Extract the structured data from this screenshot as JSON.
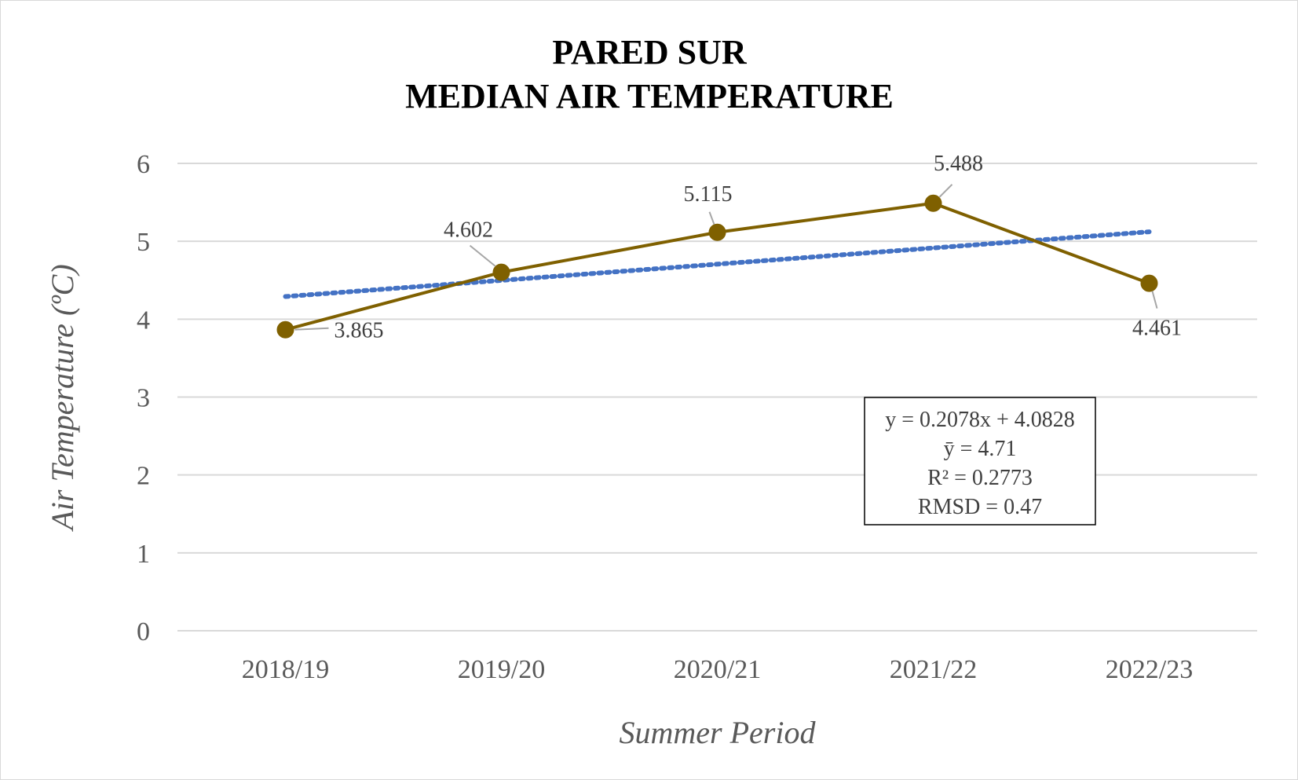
{
  "chart_data": {
    "type": "line",
    "title": [
      "PARED SUR",
      "MEDIAN AIR TEMPERATURE"
    ],
    "xlabel": "Summer Period",
    "ylabel": "Air Temperature (ºC)",
    "categories": [
      "2018/19",
      "2019/20",
      "2020/21",
      "2021/22",
      "2022/23"
    ],
    "ylim": [
      0,
      6
    ],
    "yticks": [
      0,
      1,
      2,
      3,
      4,
      5,
      6
    ],
    "grid": true,
    "legend": "none",
    "series": [
      {
        "values": [
          3.865,
          4.602,
          5.115,
          5.488,
          4.461
        ],
        "labels": [
          "3.865",
          "4.602",
          "5.115",
          "5.488",
          "4.461"
        ],
        "color": "#7f6000",
        "markers": true
      }
    ],
    "trendline": {
      "type": "linear",
      "style": "dotted",
      "color": "#4472c4",
      "slope": 0.2078,
      "intercept": 4.0828
    },
    "annotation": [
      "y = 0.2078x + 4.0828",
      "ȳ = 4.71",
      "R² = 0.2773",
      "RMSD = 0.47"
    ]
  }
}
